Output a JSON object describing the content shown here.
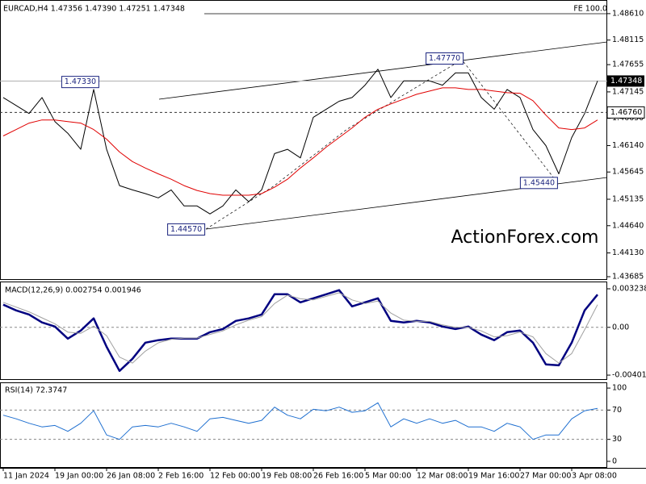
{
  "chart_data": [
    {
      "type": "line",
      "title": "EURCAD,H4  1.47356 1.47390 1.47251 1.47348",
      "ylim": [
        1.4364,
        1.4885
      ],
      "yticks": [
        {
          "value": 1.4861,
          "label": "1.48610"
        },
        {
          "value": 1.48115,
          "label": "1.48115"
        },
        {
          "value": 1.47655,
          "label": "1.47655"
        },
        {
          "value": 1.47145,
          "label": "1.47145"
        },
        {
          "value": 1.4665,
          "label": "1.46650"
        },
        {
          "value": 1.4614,
          "label": "1.46140"
        },
        {
          "value": 1.45645,
          "label": "1.45645"
        },
        {
          "value": 1.45135,
          "label": "1.45135"
        },
        {
          "value": 1.4464,
          "label": "1.44640"
        },
        {
          "value": 1.4413,
          "label": "1.44130"
        },
        {
          "value": 1.43685,
          "label": "1.43685"
        }
      ],
      "series": [
        {
          "color": "#000000",
          "values": [
            1.4704,
            1.4689,
            1.4674,
            1.4704,
            1.4659,
            1.4637,
            1.4607,
            1.4719,
            1.4607,
            1.4539,
            1.4531,
            1.4524,
            1.4516,
            1.4531,
            1.4501,
            1.4501,
            1.4486,
            1.4501,
            1.4531,
            1.4509,
            1.4531,
            1.4599,
            1.4607,
            1.4591,
            1.4667,
            1.4682,
            1.4697,
            1.4704,
            1.4727,
            1.4757,
            1.4704,
            1.4735,
            1.4735,
            1.4735,
            1.4727,
            1.475,
            1.475,
            1.4704,
            1.4682,
            1.4719,
            1.4704,
            1.4644,
            1.4614,
            1.4561,
            1.4629,
            1.4674,
            1.4735
          ]
        },
        {
          "color": "#e00000",
          "values": [
            1.4632,
            1.4644,
            1.4656,
            1.4662,
            1.4662,
            1.4659,
            1.4656,
            1.4644,
            1.4626,
            1.4602,
            1.4584,
            1.4572,
            1.4561,
            1.4551,
            1.4539,
            1.453,
            1.4524,
            1.4521,
            1.4521,
            1.4521,
            1.4524,
            1.4536,
            1.4551,
            1.4572,
            1.4591,
            1.4611,
            1.4629,
            1.4647,
            1.4667,
            1.4682,
            1.4692,
            1.4701,
            1.471,
            1.4716,
            1.4722,
            1.4722,
            1.4719,
            1.4719,
            1.4716,
            1.4713,
            1.4712,
            1.4698,
            1.4671,
            1.4647,
            1.4644,
            1.4647,
            1.4662
          ]
        }
      ],
      "last_price": {
        "value": 1.47348,
        "label": "1.47348"
      },
      "level": {
        "value": 1.4676,
        "label": "1.46760"
      },
      "fe_label": "FE 100.0",
      "annotations": [
        {
          "x": 7.4,
          "value": 1.4733,
          "label": "1.47330"
        },
        {
          "x": 15.6,
          "value": 1.4457,
          "label": "1.44570"
        },
        {
          "x": 35.6,
          "value": 1.4777,
          "label": "1.47770"
        },
        {
          "x": 42.9,
          "value": 1.4544,
          "label": "1.45440"
        }
      ],
      "watermark": "ActionForex.com"
    },
    {
      "type": "line",
      "title": "MACD(12,26,9) 0.002754 0.001946",
      "ylim": [
        -0.00435,
        0.00378
      ],
      "yticks": [
        0.003238,
        {
          "value": 0,
          "label": "0.00"
        },
        -0.004014
      ],
      "series": [
        {
          "color": "#000080",
          "width": 2.5,
          "values": [
            0.0019,
            0.00142,
            0.00108,
            0.00041,
            7e-05,
            -0.00095,
            -0.00027,
            0.00075,
            -0.00163,
            -0.00366,
            -0.00264,
            -0.00129,
            -0.00108,
            -0.00095,
            -0.00095,
            -0.00095,
            -0.00041,
            -0.00014,
            0.00054,
            0.00075,
            0.00108,
            0.00278,
            0.00278,
            0.0021,
            0.00244,
            0.00278,
            0.00312,
            0.00176,
            0.0021,
            0.00244,
            0.00054,
            0.00041,
            0.00054,
            0.00041,
            7e-05,
            -0.00014,
            7e-05,
            -0.00061,
            -0.00108,
            -0.00041,
            -0.00027,
            -0.00129,
            -0.00312,
            -0.00319,
            -0.00129,
            0.00142,
            0.00275
          ]
        },
        {
          "color": "#a0a0a0",
          "width": 1,
          "values": [
            0.0021,
            0.0017,
            0.0013,
            0.0008,
            0.0003,
            -0.0004,
            -0.0005,
            0.0001,
            -0.0007,
            -0.0025,
            -0.003,
            -0.002,
            -0.0013,
            -0.001,
            -0.0009,
            -0.0009,
            -0.0006,
            -0.0003,
            0.0002,
            0.0006,
            0.0009,
            0.002,
            0.0027,
            0.0024,
            0.0023,
            0.0026,
            0.0029,
            0.0023,
            0.002,
            0.0022,
            0.0012,
            0.0006,
            0.0005,
            0.0005,
            0.0002,
            0,
            0,
            -0.0003,
            -0.0008,
            -0.0007,
            -0.0004,
            -0.0008,
            -0.0022,
            -0.003,
            -0.0022,
            -0.0002,
            0.0019
          ]
        }
      ],
      "dashed_levels": [
        0
      ]
    },
    {
      "type": "line",
      "title": "RSI(14) 72.3747",
      "ylim": [
        -8.9,
        106.7
      ],
      "yticks": [
        100,
        70,
        30,
        0
      ],
      "series": [
        {
          "color": "#1e6fd0",
          "width": 1,
          "values": [
            63,
            58,
            52,
            47,
            49,
            41,
            52,
            69,
            36,
            30,
            47,
            49,
            47,
            52,
            47,
            41,
            58,
            60,
            56,
            52,
            56,
            74,
            63,
            58,
            71,
            69,
            74,
            67,
            69,
            80,
            47,
            58,
            52,
            58,
            52,
            56,
            47,
            47,
            41,
            52,
            47,
            30,
            36,
            36,
            58,
            69,
            72.4
          ]
        }
      ],
      "dashed_levels": [
        70,
        30
      ],
      "xlim": [
        -0.25,
        46.75
      ],
      "xticks": [
        {
          "value": 0,
          "label": "11 Jan 2024"
        },
        {
          "value": 4,
          "label": "19 Jan 00:00"
        },
        {
          "value": 8,
          "label": "26 Jan 08:00"
        },
        {
          "value": 12,
          "label": "2 Feb 16:00"
        },
        {
          "value": 16,
          "label": "12 Feb 00:00"
        },
        {
          "value": 20,
          "label": "19 Feb 08:00"
        },
        {
          "value": 24,
          "label": "26 Feb 16:00"
        },
        {
          "value": 28,
          "label": "5 Mar 00:00"
        },
        {
          "value": 32,
          "label": "12 Mar 08:00"
        },
        {
          "value": 36,
          "label": "19 Mar 16:00"
        },
        {
          "value": 40,
          "label": "27 Mar 00:00"
        },
        {
          "value": 44,
          "label": "3 Apr 08:00"
        }
      ]
    }
  ]
}
